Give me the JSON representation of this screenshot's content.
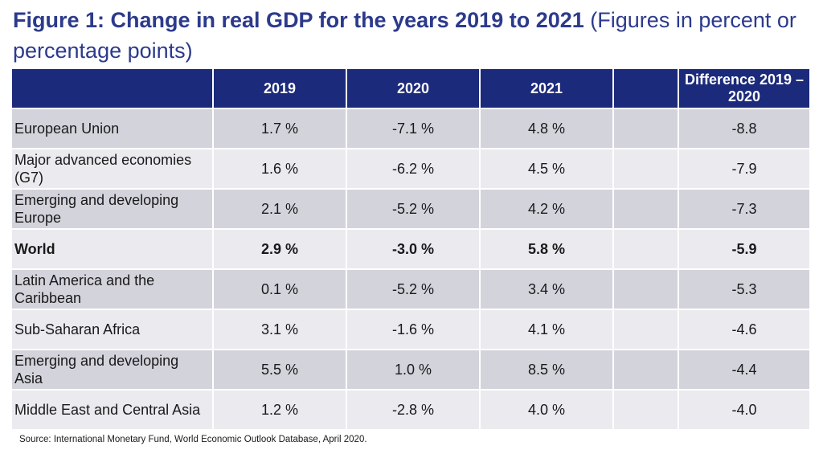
{
  "title": {
    "bold": "Figure 1: Change in real GDP for the years 2019 to 2021",
    "normal": "(Figures in percent or percentage points)"
  },
  "chart_data": {
    "type": "table",
    "columns": [
      "",
      "2019",
      "2020",
      "2021",
      "",
      "Difference 2019 – 2020"
    ],
    "rows": [
      {
        "region": "European Union",
        "y2019": "1.7 %",
        "y2020": "-7.1 %",
        "y2021": "4.8 %",
        "diff": "-8.8",
        "bold": false
      },
      {
        "region": "Major advanced economies (G7)",
        "y2019": "1.6 %",
        "y2020": "-6.2 %",
        "y2021": "4.5 %",
        "diff": "-7.9",
        "bold": false
      },
      {
        "region": "Emerging and developing Europe",
        "y2019": "2.1 %",
        "y2020": "-5.2 %",
        "y2021": "4.2 %",
        "diff": "-7.3",
        "bold": false
      },
      {
        "region": "World",
        "y2019": "2.9 %",
        "y2020": "-3.0 %",
        "y2021": "5.8 %",
        "diff": "-5.9",
        "bold": true
      },
      {
        "region": "Latin America and the Caribbean",
        "y2019": "0.1 %",
        "y2020": "-5.2 %",
        "y2021": "3.4 %",
        "diff": "-5.3",
        "bold": false
      },
      {
        "region": "Sub-Saharan Africa",
        "y2019": "3.1 %",
        "y2020": "-1.6 %",
        "y2021": "4.1 %",
        "diff": "-4.6",
        "bold": false
      },
      {
        "region": "Emerging and developing Asia",
        "y2019": "5.5 %",
        "y2020": "1.0 %",
        "y2021": "8.5 %",
        "diff": "-4.4",
        "bold": false
      },
      {
        "region": "Middle East and Central Asia",
        "y2019": "1.2 %",
        "y2020": "-2.8 %",
        "y2021": "4.0 %",
        "diff": "-4.0",
        "bold": false
      }
    ]
  },
  "source": "Source: International Monetary Fund, World Economic Outlook Database, April 2020.",
  "colors": {
    "title": "#2c3a8c",
    "header_bg": "#1b2a7a",
    "row_dark": "#d3d3dc",
    "row_light": "#eaeaef"
  }
}
